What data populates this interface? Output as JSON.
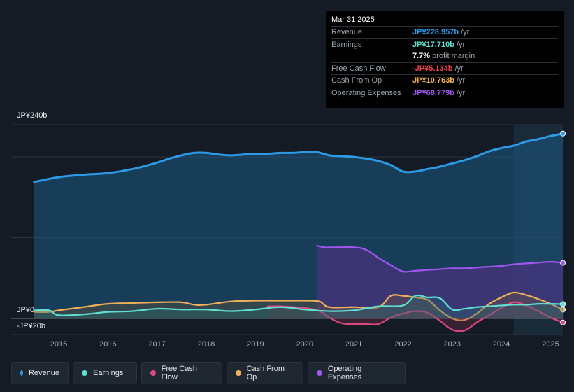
{
  "tooltip": {
    "date": "Mar 31 2025",
    "rows": [
      {
        "label": "Revenue",
        "value": "JP¥228.957b",
        "unit": "/yr",
        "color": "#2d9ae6"
      },
      {
        "label": "Earnings",
        "value": "JP¥17.710b",
        "unit": "/yr",
        "color": "#5fe0d2"
      },
      {
        "label": "",
        "value": "7.7%",
        "unit": "profit margin",
        "color": "#ffffff"
      },
      {
        "label": "Free Cash Flow",
        "value": "-JP¥5.134b",
        "unit": "/yr",
        "color": "#e8424d"
      },
      {
        "label": "Cash From Op",
        "value": "JP¥10.763b",
        "unit": "/yr",
        "color": "#f0b05a"
      },
      {
        "label": "Operating Expenses",
        "value": "JP¥68.779b",
        "unit": "/yr",
        "color": "#a257f0"
      }
    ]
  },
  "axis": {
    "y_top_label": "JP¥240b",
    "y_zero_label": "JP¥0",
    "y_bottom_label": "-JP¥20b"
  },
  "legend": [
    {
      "label": "Revenue",
      "color": "#2d9ae6"
    },
    {
      "label": "Earnings",
      "color": "#5fe0d2"
    },
    {
      "label": "Free Cash Flow",
      "color": "#d94a82"
    },
    {
      "label": "Cash From Op",
      "color": "#f0b05a"
    },
    {
      "label": "Operating Expenses",
      "color": "#a257f0"
    }
  ],
  "chart_data": {
    "type": "area",
    "title": "",
    "xlabel": "",
    "ylabel": "",
    "ylim": [
      -20,
      240
    ],
    "x_ticks": [
      "2015",
      "2016",
      "2017",
      "2018",
      "2019",
      "2020",
      "2021",
      "2022",
      "2023",
      "2024",
      "2025"
    ],
    "highlight_from": 2024.25,
    "series": [
      {
        "name": "Revenue",
        "color": "#2d9ae6",
        "fill": true,
        "x": [
          2014.5,
          2015.0,
          2015.5,
          2016.0,
          2016.5,
          2017.0,
          2017.25,
          2017.5,
          2017.75,
          2018.0,
          2018.25,
          2018.5,
          2018.75,
          2019.0,
          2019.25,
          2019.5,
          2019.75,
          2020.0,
          2020.25,
          2020.5,
          2020.75,
          2021.0,
          2021.25,
          2021.5,
          2021.75,
          2022.0,
          2022.25,
          2022.5,
          2022.75,
          2023.0,
          2023.25,
          2023.5,
          2023.75,
          2024.0,
          2024.25,
          2024.5,
          2024.75,
          2025.0,
          2025.25
        ],
        "values": [
          169,
          175,
          178,
          180,
          185,
          193,
          198,
          202,
          205,
          205,
          203,
          202,
          203,
          204,
          204,
          205,
          205,
          206,
          206,
          202,
          201,
          200,
          198,
          195,
          190,
          182,
          182,
          185,
          188,
          192,
          196,
          201,
          207,
          211,
          214,
          219,
          222,
          226,
          229
        ]
      },
      {
        "name": "Earnings",
        "color": "#5fe0d2",
        "fill": true,
        "x": [
          2014.5,
          2014.8,
          2015.0,
          2015.5,
          2016.0,
          2016.5,
          2017.0,
          2017.5,
          2018.0,
          2018.5,
          2019.0,
          2019.5,
          2020.0,
          2020.5,
          2021.0,
          2021.5,
          2022.0,
          2022.25,
          2022.5,
          2022.75,
          2023.0,
          2023.25,
          2023.5,
          2023.75,
          2024.0,
          2024.25,
          2024.5,
          2024.75,
          2025.0,
          2025.25
        ],
        "values": [
          10,
          10,
          4,
          5,
          8,
          9,
          12,
          11,
          11,
          9,
          11,
          14,
          11,
          9,
          10,
          15,
          16,
          28,
          26,
          25,
          11,
          12,
          14,
          15,
          16,
          17,
          17,
          18,
          18,
          17.7
        ]
      },
      {
        "name": "Free Cash Flow",
        "color": "#d94a82",
        "fill": true,
        "x": [
          2019.25,
          2019.5,
          2020.0,
          2020.3,
          2020.5,
          2020.75,
          2021.0,
          2021.25,
          2021.5,
          2021.75,
          2022.0,
          2022.25,
          2022.5,
          2022.75,
          2023.0,
          2023.25,
          2023.5,
          2023.75,
          2024.0,
          2024.25,
          2024.5,
          2024.75,
          2025.0,
          2025.25
        ],
        "values": [
          15,
          15,
          13,
          9,
          1,
          -6,
          -7,
          -7,
          -7,
          1,
          6,
          9,
          7,
          -3,
          -14,
          -15,
          -5,
          4,
          13,
          20,
          16,
          9,
          1,
          -5.1
        ]
      },
      {
        "name": "Cash From Op",
        "color": "#f0b05a",
        "fill": true,
        "x": [
          2014.5,
          2014.8,
          2015.0,
          2015.5,
          2016.0,
          2016.5,
          2017.0,
          2017.5,
          2017.75,
          2018.0,
          2018.5,
          2019.0,
          2019.5,
          2020.0,
          2020.3,
          2020.5,
          2021.0,
          2021.5,
          2021.75,
          2022.0,
          2022.25,
          2022.5,
          2022.75,
          2023.0,
          2023.25,
          2023.5,
          2023.75,
          2024.0,
          2024.25,
          2024.5,
          2024.75,
          2025.0,
          2025.25
        ],
        "values": [
          8,
          8,
          10,
          14,
          18,
          19,
          20,
          20,
          17,
          17,
          21,
          22,
          22,
          22,
          21,
          14,
          14,
          14,
          28,
          28,
          26,
          23,
          10,
          0,
          -2,
          6,
          18,
          26,
          32,
          29,
          24,
          18,
          10.8
        ]
      },
      {
        "name": "Operating Expenses",
        "color": "#a257f0",
        "fill": true,
        "x": [
          2020.25,
          2020.4,
          2020.6,
          2021.0,
          2021.25,
          2021.5,
          2021.75,
          2022.0,
          2022.25,
          2022.5,
          2022.75,
          2023.0,
          2023.25,
          2023.5,
          2023.75,
          2024.0,
          2024.25,
          2024.5,
          2024.75,
          2025.0,
          2025.25
        ],
        "values": [
          90,
          88,
          88,
          88,
          85,
          75,
          66,
          58,
          59,
          60,
          61,
          62,
          62,
          63,
          64,
          65,
          67,
          68,
          69,
          70,
          68.8
        ]
      }
    ]
  }
}
